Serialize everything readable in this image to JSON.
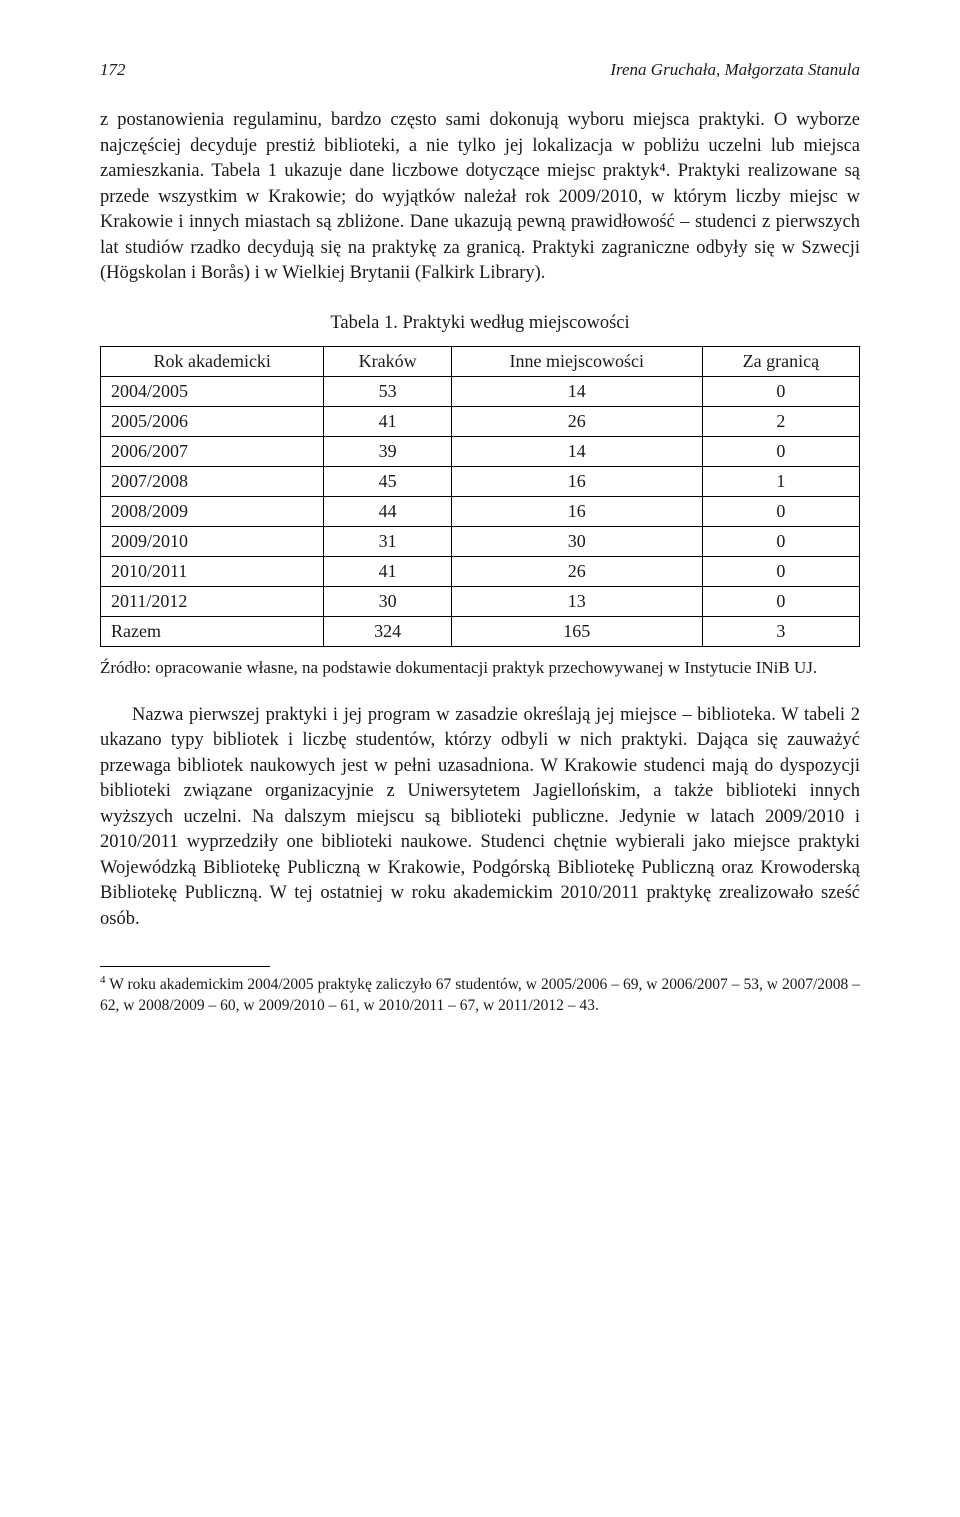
{
  "header": {
    "page_number": "172",
    "authors": "Irena Gruchała, Małgorzata Stanula"
  },
  "paragraph1": "z postanowienia regulaminu, bardzo często sami dokonują wyboru miejsca praktyki. O wyborze najczęściej decyduje prestiż biblioteki, a nie tylko jej lokalizacja w pobliżu uczelni lub miejsca zamieszkania. Tabela 1 ukazuje dane liczbowe dotyczące miejsc praktyk⁴. Praktyki realizowane są przede wszystkim w Krakowie; do wyjątków należał rok 2009/2010, w którym liczby miejsc w Krakowie i innych miastach są zbliżone. Dane ukazują pewną prawidłowość – studenci z pierwszych lat studiów rzadko decydują się na praktykę za granicą. Praktyki zagraniczne odbyły się w Szwecji (Högskolan i Borås) i w Wielkiej Brytanii (Falkirk Library).",
  "table": {
    "caption": "Tabela 1. Praktyki według miejscowości",
    "columns": [
      "Rok akademicki",
      "Kraków",
      "Inne miejscowości",
      "Za granicą"
    ],
    "rows": [
      [
        "2004/2005",
        "53",
        "14",
        "0"
      ],
      [
        "2005/2006",
        "41",
        "26",
        "2"
      ],
      [
        "2006/2007",
        "39",
        "14",
        "0"
      ],
      [
        "2007/2008",
        "45",
        "16",
        "1"
      ],
      [
        "2008/2009",
        "44",
        "16",
        "0"
      ],
      [
        "2009/2010",
        "31",
        "30",
        "0"
      ],
      [
        "2010/2011",
        "41",
        "26",
        "0"
      ],
      [
        "2011/2012",
        "30",
        "13",
        "0"
      ],
      [
        "Razem",
        "324",
        "165",
        "3"
      ]
    ],
    "source": "Źródło: opracowanie własne, na podstawie dokumentacji praktyk przechowywanej w Instytucie INiB UJ."
  },
  "paragraph2": "Nazwa pierwszej praktyki i jej program w zasadzie określają jej miejsce – biblioteka. W tabeli 2 ukazano typy bibliotek i liczbę studentów, którzy odbyli w nich praktyki. Dająca się zauważyć przewaga bibliotek naukowych jest w pełni uzasadniona. W Krakowie studenci mają do dyspozycji biblioteki związane organizacyjnie z Uniwersytetem Jagiellońskim, a także biblioteki innych wyższych uczelni. Na dalszym miejscu są biblioteki publiczne. Jedynie w latach 2009/2010 i 2010/2011 wyprzedziły one biblioteki naukowe. Studenci chętnie wybierali jako miejsce praktyki Wojewódzką Bibliotekę Publiczną w Krakowie, Podgórską Bibliotekę Publiczną oraz Krowoderską Bibliotekę Publiczną. W tej ostatniej w roku akademickim 2010/2011 praktykę zrealizowało sześć osób.",
  "footnote": {
    "marker": "4",
    "text": "W roku akademickim 2004/2005 praktykę zaliczyło 67 studentów, w 2005/2006 – 69, w 2006/2007 – 53, w 2007/2008 – 62, w 2008/2009 – 60, w 2009/2010 – 61, w 2010/2011 – 67, w 2011/2012 – 43."
  }
}
